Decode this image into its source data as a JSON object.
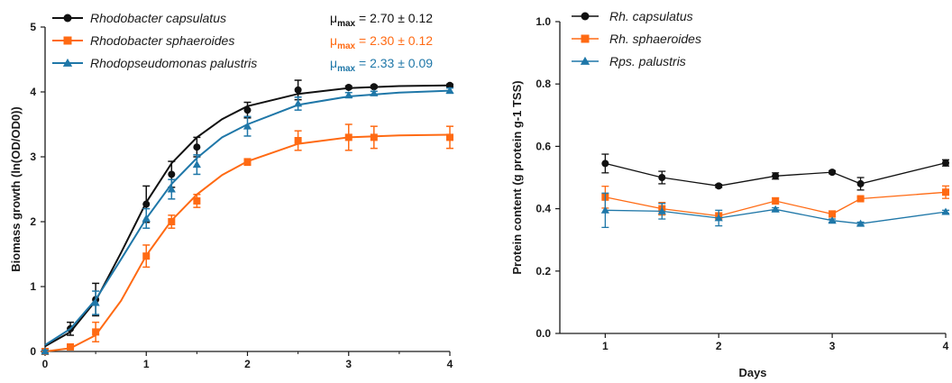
{
  "chart_data": [
    {
      "type": "line",
      "xlabel": "",
      "ylabel": "Biomass growth (ln(OD/OD0))",
      "xlim": [
        0,
        4
      ],
      "ylim": [
        0,
        5
      ],
      "xticks": [
        "0",
        "1",
        "2",
        "3",
        "4"
      ],
      "yticks": [
        "0",
        "1",
        "2",
        "3",
        "4",
        "5"
      ],
      "legend_position": "top-left",
      "series": [
        {
          "name": "Rhodobacter capsulatus",
          "color": "#111111",
          "marker": "circle",
          "mu_label": "2.70 ± 0.12",
          "points": [
            {
              "x": 0,
              "y": 0.0,
              "err": 0.03
            },
            {
              "x": 0.25,
              "y": 0.35,
              "err": 0.1
            },
            {
              "x": 0.5,
              "y": 0.8,
              "err": 0.25
            },
            {
              "x": 1,
              "y": 2.27,
              "err": 0.28
            },
            {
              "x": 1.25,
              "y": 2.73,
              "err": 0.2
            },
            {
              "x": 1.5,
              "y": 3.15,
              "err": 0.15
            },
            {
              "x": 2,
              "y": 3.72,
              "err": 0.12
            },
            {
              "x": 2.5,
              "y": 4.03,
              "err": 0.15
            },
            {
              "x": 3,
              "y": 4.07,
              "err": 0.02
            },
            {
              "x": 3.25,
              "y": 4.08,
              "err": 0.02
            },
            {
              "x": 4,
              "y": 4.1,
              "err": 0.02
            }
          ],
          "fit": [
            [
              0,
              0.08
            ],
            [
              0.25,
              0.3
            ],
            [
              0.5,
              0.78
            ],
            [
              0.75,
              1.52
            ],
            [
              1,
              2.3
            ],
            [
              1.25,
              2.9
            ],
            [
              1.5,
              3.3
            ],
            [
              1.75,
              3.58
            ],
            [
              2,
              3.78
            ],
            [
              2.5,
              3.97
            ],
            [
              3,
              4.06
            ],
            [
              3.5,
              4.09
            ],
            [
              4,
              4.1
            ]
          ]
        },
        {
          "name": "Rhodobacter sphaeroides",
          "color": "#ff6a13",
          "marker": "square",
          "mu_label": "2.30 ± 0.12",
          "points": [
            {
              "x": 0,
              "y": 0.0,
              "err": 0.02
            },
            {
              "x": 0.25,
              "y": 0.07,
              "err": 0.03
            },
            {
              "x": 0.5,
              "y": 0.3,
              "err": 0.15
            },
            {
              "x": 1,
              "y": 1.47,
              "err": 0.17
            },
            {
              "x": 1.25,
              "y": 2.0,
              "err": 0.1
            },
            {
              "x": 1.5,
              "y": 2.32,
              "err": 0.1
            },
            {
              "x": 2,
              "y": 2.92,
              "err": 0.05
            },
            {
              "x": 2.5,
              "y": 3.25,
              "err": 0.15
            },
            {
              "x": 3,
              "y": 3.3,
              "err": 0.2
            },
            {
              "x": 3.25,
              "y": 3.3,
              "err": 0.17
            },
            {
              "x": 4,
              "y": 3.3,
              "err": 0.17
            }
          ],
          "fit": [
            [
              0,
              0.0
            ],
            [
              0.25,
              0.05
            ],
            [
              0.5,
              0.25
            ],
            [
              0.75,
              0.78
            ],
            [
              1,
              1.48
            ],
            [
              1.25,
              2.02
            ],
            [
              1.5,
              2.42
            ],
            [
              1.75,
              2.72
            ],
            [
              2,
              2.93
            ],
            [
              2.5,
              3.2
            ],
            [
              3,
              3.3
            ],
            [
              3.5,
              3.33
            ],
            [
              4,
              3.34
            ]
          ]
        },
        {
          "name": "Rhodopseudomonas palustris",
          "color": "#1f77a8",
          "marker": "triangle",
          "mu_label": "2.33 ± 0.09",
          "points": [
            {
              "x": 0,
              "y": 0.0,
              "err": 0.02
            },
            {
              "x": 0.5,
              "y": 0.75,
              "err": 0.18
            },
            {
              "x": 1,
              "y": 2.05,
              "err": 0.15
            },
            {
              "x": 1.25,
              "y": 2.5,
              "err": 0.15
            },
            {
              "x": 1.5,
              "y": 2.88,
              "err": 0.15
            },
            {
              "x": 2,
              "y": 3.47,
              "err": 0.15
            },
            {
              "x": 2.5,
              "y": 3.82,
              "err": 0.1
            },
            {
              "x": 3,
              "y": 3.95,
              "err": 0.04
            },
            {
              "x": 3.25,
              "y": 3.98,
              "err": 0.03
            },
            {
              "x": 4,
              "y": 4.02,
              "err": 0.04
            }
          ],
          "fit": [
            [
              0,
              0.1
            ],
            [
              0.25,
              0.35
            ],
            [
              0.5,
              0.8
            ],
            [
              0.75,
              1.42
            ],
            [
              1,
              2.05
            ],
            [
              1.25,
              2.58
            ],
            [
              1.5,
              2.98
            ],
            [
              1.75,
              3.3
            ],
            [
              2,
              3.5
            ],
            [
              2.5,
              3.8
            ],
            [
              3,
              3.93
            ],
            [
              3.5,
              3.99
            ],
            [
              4,
              4.02
            ]
          ]
        }
      ],
      "mu_prefix": "μ",
      "mu_subscript": "max",
      "mu_equals": " = "
    },
    {
      "type": "line",
      "xlabel": "Days",
      "ylabel": "Protein content (g protein g-1 TSS)",
      "xlim": [
        0.6,
        4
      ],
      "ylim": [
        0,
        1.0
      ],
      "xticks": [
        "1",
        "2",
        "3",
        "4"
      ],
      "yticks": [
        "0.0",
        "0.2",
        "0.4",
        "0.6",
        "0.8",
        "1.0"
      ],
      "legend_position": "top-left",
      "series": [
        {
          "name": "Rh. capsulatus",
          "color": "#111111",
          "marker": "circle",
          "points": [
            {
              "x": 1,
              "y": 0.545,
              "err": 0.03
            },
            {
              "x": 1.5,
              "y": 0.5,
              "err": 0.02
            },
            {
              "x": 2,
              "y": 0.473,
              "err": 0.005
            },
            {
              "x": 2.5,
              "y": 0.505,
              "err": 0.01
            },
            {
              "x": 3,
              "y": 0.517,
              "err": 0.005
            },
            {
              "x": 3.25,
              "y": 0.48,
              "err": 0.02
            },
            {
              "x": 4,
              "y": 0.547,
              "err": 0.01
            }
          ]
        },
        {
          "name": "Rh. sphaeroides",
          "color": "#ff6a13",
          "marker": "square",
          "points": [
            {
              "x": 1,
              "y": 0.437,
              "err": 0.035
            },
            {
              "x": 1.5,
              "y": 0.4,
              "err": 0.02
            },
            {
              "x": 2,
              "y": 0.377,
              "err": 0.01
            },
            {
              "x": 2.5,
              "y": 0.425,
              "err": 0.01
            },
            {
              "x": 3,
              "y": 0.383,
              "err": 0.01
            },
            {
              "x": 3.25,
              "y": 0.432,
              "err": 0.005
            },
            {
              "x": 4,
              "y": 0.453,
              "err": 0.02
            }
          ]
        },
        {
          "name": "Rps. palustris",
          "color": "#1f77a8",
          "marker": "triangle",
          "points": [
            {
              "x": 1,
              "y": 0.395,
              "err": 0.055
            },
            {
              "x": 1.5,
              "y": 0.392,
              "err": 0.025
            },
            {
              "x": 2,
              "y": 0.37,
              "err": 0.025
            },
            {
              "x": 2.5,
              "y": 0.398,
              "err": 0.005
            },
            {
              "x": 3,
              "y": 0.362,
              "err": 0.005
            },
            {
              "x": 3.25,
              "y": 0.352,
              "err": 0.005
            },
            {
              "x": 4,
              "y": 0.39,
              "err": 0.005
            }
          ]
        }
      ]
    }
  ]
}
